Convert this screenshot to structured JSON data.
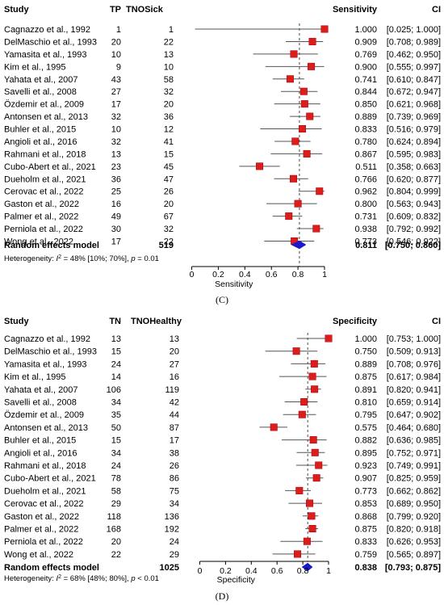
{
  "chart_data": [
    {
      "type": "forest",
      "panel_label": "(C)",
      "columns": {
        "study": "Study",
        "n1": "TP",
        "n2": "TNOSick",
        "effect": "Sensitivity",
        "ci": "CI"
      },
      "xlabel": "Sensitivity",
      "xlim": [
        0,
        1
      ],
      "xticks": [
        "0",
        "0.2",
        "0.4",
        "0.6",
        "0.8",
        "1"
      ],
      "reference_line": 0.811,
      "studies": [
        {
          "study": "Cagnazzo et al., 1992",
          "n1": "1",
          "n2": "1",
          "est": 1.0,
          "lo": 0.025,
          "hi": 1.0,
          "effect": "1.000",
          "ci": "[0.025; 1.000]"
        },
        {
          "study": "DelMaschio et al., 1993",
          "n1": "20",
          "n2": "22",
          "est": 0.909,
          "lo": 0.708,
          "hi": 0.989,
          "effect": "0.909",
          "ci": "[0.708; 0.989]"
        },
        {
          "study": "Yamasita et al., 1993",
          "n1": "10",
          "n2": "13",
          "est": 0.769,
          "lo": 0.462,
          "hi": 0.95,
          "effect": "0.769",
          "ci": "[0.462; 0.950]"
        },
        {
          "study": "Kim et al., 1995",
          "n1": "9",
          "n2": "10",
          "est": 0.9,
          "lo": 0.555,
          "hi": 0.997,
          "effect": "0.900",
          "ci": "[0.555; 0.997]"
        },
        {
          "study": "Yahata et al., 2007",
          "n1": "43",
          "n2": "58",
          "est": 0.741,
          "lo": 0.61,
          "hi": 0.847,
          "effect": "0.741",
          "ci": "[0.610; 0.847]"
        },
        {
          "study": "Savelli et al., 2008",
          "n1": "27",
          "n2": "32",
          "est": 0.844,
          "lo": 0.672,
          "hi": 0.947,
          "effect": "0.844",
          "ci": "[0.672; 0.947]"
        },
        {
          "study": "Özdemir et al., 2009",
          "n1": "17",
          "n2": "20",
          "est": 0.85,
          "lo": 0.621,
          "hi": 0.968,
          "effect": "0.850",
          "ci": "[0.621; 0.968]"
        },
        {
          "study": "Antonsen  et al., 2013",
          "n1": "32",
          "n2": "36",
          "est": 0.889,
          "lo": 0.739,
          "hi": 0.969,
          "effect": "0.889",
          "ci": "[0.739; 0.969]"
        },
        {
          "study": "Buhler et al., 2015",
          "n1": "10",
          "n2": "12",
          "est": 0.833,
          "lo": 0.516,
          "hi": 0.979,
          "effect": "0.833",
          "ci": "[0.516; 0.979]"
        },
        {
          "study": "Angioli et al., 2016",
          "n1": "32",
          "n2": "41",
          "est": 0.78,
          "lo": 0.624,
          "hi": 0.894,
          "effect": "0.780",
          "ci": "[0.624; 0.894]"
        },
        {
          "study": "Rahmani et al., 2018",
          "n1": "13",
          "n2": "15",
          "est": 0.867,
          "lo": 0.595,
          "hi": 0.983,
          "effect": "0.867",
          "ci": "[0.595; 0.983]"
        },
        {
          "study": "Cubo-Abert et al., 2021",
          "n1": "23",
          "n2": "45",
          "est": 0.511,
          "lo": 0.358,
          "hi": 0.663,
          "effect": "0.511",
          "ci": "[0.358; 0.663]"
        },
        {
          "study": "Dueholm et al., 2021",
          "n1": "36",
          "n2": "47",
          "est": 0.766,
          "lo": 0.62,
          "hi": 0.877,
          "effect": "0.766",
          "ci": "[0.620; 0.877]"
        },
        {
          "study": "Cerovac et al., 2022",
          "n1": "25",
          "n2": "26",
          "est": 0.962,
          "lo": 0.804,
          "hi": 0.999,
          "effect": "0.962",
          "ci": "[0.804; 0.999]"
        },
        {
          "study": "Gaston et al., 2022",
          "n1": "16",
          "n2": "20",
          "est": 0.8,
          "lo": 0.563,
          "hi": 0.943,
          "effect": "0.800",
          "ci": "[0.563; 0.943]"
        },
        {
          "study": "Palmer et al., 2022",
          "n1": "49",
          "n2": "67",
          "est": 0.731,
          "lo": 0.609,
          "hi": 0.832,
          "effect": "0.731",
          "ci": "[0.609; 0.832]"
        },
        {
          "study": "Perniola et al., 2022",
          "n1": "30",
          "n2": "32",
          "est": 0.938,
          "lo": 0.792,
          "hi": 0.992,
          "effect": "0.938",
          "ci": "[0.792; 0.992]"
        },
        {
          "study": "Wong et al., 2022",
          "n1": "17",
          "n2": "22",
          "est": 0.773,
          "lo": 0.546,
          "hi": 0.922,
          "effect": "0.773",
          "ci": "[0.546; 0.922]"
        }
      ],
      "pooled": {
        "label": "Random effects model",
        "total": "519",
        "est": 0.811,
        "lo": 0.75,
        "hi": 0.86,
        "effect": "0.811",
        "ci": "[0.750; 0.860]"
      },
      "heterogeneity": {
        "prefix": "Heterogeneity: ",
        "i2": "I",
        "sup": "2",
        "mid": " = 48% [10%; 70%], ",
        "p": "p",
        "suffix": " = 0.01"
      }
    },
    {
      "type": "forest",
      "panel_label": "(D)",
      "columns": {
        "study": "Study",
        "n1": "TN",
        "n2": "TNOHealthy",
        "effect": "Specificity",
        "ci": "CI"
      },
      "xlabel": "Specificity",
      "xlim": [
        0,
        1
      ],
      "xticks": [
        "0",
        "0.2",
        "0.4",
        "0.6",
        "0.8",
        "1"
      ],
      "reference_line": 0.838,
      "studies": [
        {
          "study": "Cagnazzo et al., 1992",
          "n1": "13",
          "n2": "13",
          "est": 1.0,
          "lo": 0.753,
          "hi": 1.0,
          "effect": "1.000",
          "ci": "[0.753; 1.000]"
        },
        {
          "study": "DelMaschio et al., 1993",
          "n1": "15",
          "n2": "20",
          "est": 0.75,
          "lo": 0.509,
          "hi": 0.913,
          "effect": "0.750",
          "ci": "[0.509; 0.913]"
        },
        {
          "study": "Yamasita et al., 1993",
          "n1": "24",
          "n2": "27",
          "est": 0.889,
          "lo": 0.708,
          "hi": 0.976,
          "effect": "0.889",
          "ci": "[0.708; 0.976]"
        },
        {
          "study": "Kim et al., 1995",
          "n1": "14",
          "n2": "16",
          "est": 0.875,
          "lo": 0.617,
          "hi": 0.984,
          "effect": "0.875",
          "ci": "[0.617; 0.984]"
        },
        {
          "study": "Yahata et al., 2007",
          "n1": "106",
          "n2": "119",
          "est": 0.891,
          "lo": 0.82,
          "hi": 0.941,
          "effect": "0.891",
          "ci": "[0.820; 0.941]"
        },
        {
          "study": "Savelli et al., 2008",
          "n1": "34",
          "n2": "42",
          "est": 0.81,
          "lo": 0.659,
          "hi": 0.914,
          "effect": "0.810",
          "ci": "[0.659; 0.914]"
        },
        {
          "study": "Özdemir et al., 2009",
          "n1": "35",
          "n2": "44",
          "est": 0.795,
          "lo": 0.647,
          "hi": 0.902,
          "effect": "0.795",
          "ci": "[0.647; 0.902]"
        },
        {
          "study": "Antonsen  et al., 2013",
          "n1": "50",
          "n2": "87",
          "est": 0.575,
          "lo": 0.464,
          "hi": 0.68,
          "effect": "0.575",
          "ci": "[0.464; 0.680]"
        },
        {
          "study": "Buhler et al., 2015",
          "n1": "15",
          "n2": "17",
          "est": 0.882,
          "lo": 0.636,
          "hi": 0.985,
          "effect": "0.882",
          "ci": "[0.636; 0.985]"
        },
        {
          "study": "Angioli et al., 2016",
          "n1": "34",
          "n2": "38",
          "est": 0.895,
          "lo": 0.752,
          "hi": 0.971,
          "effect": "0.895",
          "ci": "[0.752; 0.971]"
        },
        {
          "study": "Rahmani et al., 2018",
          "n1": "24",
          "n2": "26",
          "est": 0.923,
          "lo": 0.749,
          "hi": 0.991,
          "effect": "0.923",
          "ci": "[0.749; 0.991]"
        },
        {
          "study": "Cubo-Abert et al., 2021",
          "n1": "78",
          "n2": "86",
          "est": 0.907,
          "lo": 0.825,
          "hi": 0.959,
          "effect": "0.907",
          "ci": "[0.825; 0.959]"
        },
        {
          "study": "Dueholm et al., 2021",
          "n1": "58",
          "n2": "75",
          "est": 0.773,
          "lo": 0.662,
          "hi": 0.862,
          "effect": "0.773",
          "ci": "[0.662; 0.862]"
        },
        {
          "study": "Cerovac et al., 2022",
          "n1": "29",
          "n2": "34",
          "est": 0.853,
          "lo": 0.689,
          "hi": 0.95,
          "effect": "0.853",
          "ci": "[0.689; 0.950]"
        },
        {
          "study": "Gaston et al., 2022",
          "n1": "118",
          "n2": "136",
          "est": 0.868,
          "lo": 0.799,
          "hi": 0.92,
          "effect": "0.868",
          "ci": "[0.799; 0.920]"
        },
        {
          "study": "Palmer et al., 2022",
          "n1": "168",
          "n2": "192",
          "est": 0.875,
          "lo": 0.82,
          "hi": 0.918,
          "effect": "0.875",
          "ci": "[0.820; 0.918]"
        },
        {
          "study": "Perniola et al., 2022",
          "n1": "20",
          "n2": "24",
          "est": 0.833,
          "lo": 0.626,
          "hi": 0.953,
          "effect": "0.833",
          "ci": "[0.626; 0.953]"
        },
        {
          "study": "Wong et al., 2022",
          "n1": "22",
          "n2": "29",
          "est": 0.759,
          "lo": 0.565,
          "hi": 0.897,
          "effect": "0.759",
          "ci": "[0.565; 0.897]"
        }
      ],
      "pooled": {
        "label": "Random effects model",
        "total": "1025",
        "est": 0.838,
        "lo": 0.793,
        "hi": 0.875,
        "effect": "0.838",
        "ci": "[0.793; 0.875]"
      },
      "heterogeneity": {
        "prefix": "Heterogeneity: ",
        "i2": "I",
        "sup": "2",
        "mid": " = 68% [48%; 80%], ",
        "p": "p",
        "suffix": " < 0.01"
      }
    }
  ],
  "colors": {
    "square": "#dd1c1c",
    "square_edge": "#a00000",
    "diamond": "#1a1acc",
    "line": "#555555",
    "ref": "#333333"
  }
}
